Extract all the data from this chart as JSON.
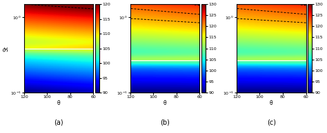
{
  "panel_labels": [
    "(a)",
    "(b)",
    "(c)"
  ],
  "xlabel": "θ",
  "ylabel": "St",
  "xticks": [
    120,
    100,
    80,
    60
  ],
  "colorbar_ranges": [
    [
      90,
      120
    ],
    [
      90,
      130
    ],
    [
      90,
      130
    ]
  ],
  "colorbar_ticks": [
    [
      90,
      95,
      100,
      105,
      110,
      115,
      120
    ],
    [
      90,
      95,
      100,
      105,
      110,
      115,
      120,
      125,
      130
    ],
    [
      90,
      95,
      100,
      105,
      110,
      115,
      120,
      125,
      130
    ]
  ],
  "white_line_St": [
    0.38,
    0.27,
    0.27
  ],
  "n_dashed_lines": [
    1,
    3,
    3
  ],
  "dashed_line_params_a": [
    [
      0.018,
      1.3
    ]
  ],
  "dashed_line_params_bc": [
    [
      0.03,
      1.45
    ],
    [
      0.022,
      1.1
    ],
    [
      0.016,
      0.85
    ]
  ]
}
